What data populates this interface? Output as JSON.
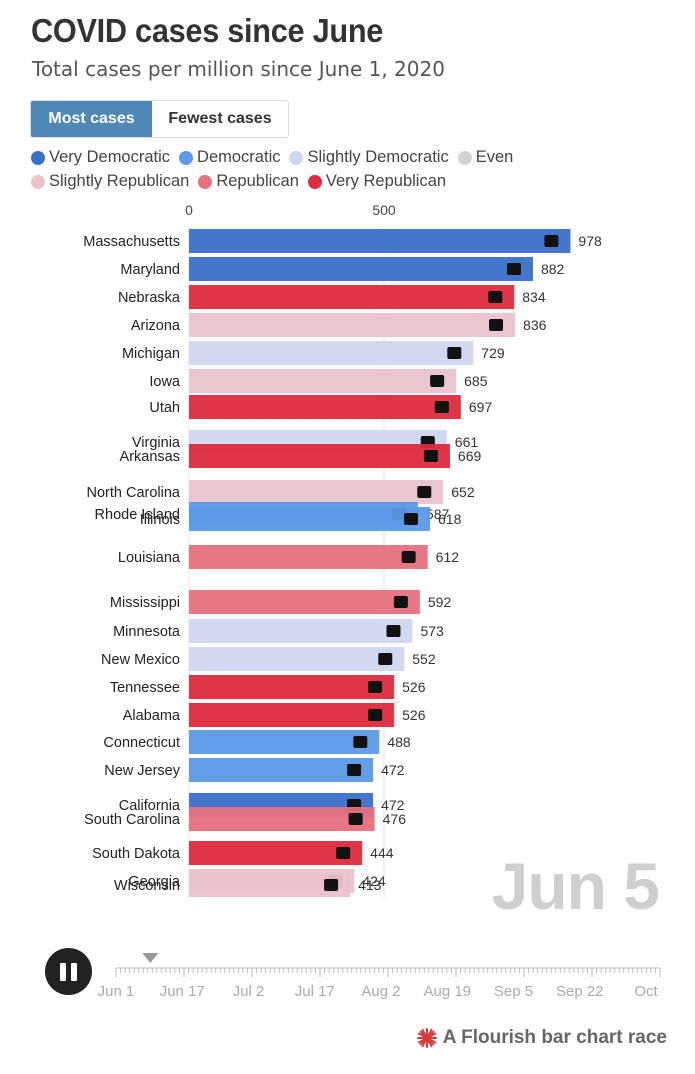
{
  "header": {
    "title": "COVID cases since June",
    "subtitle": "Total cases per million since June 1, 2020"
  },
  "toggle": {
    "most_label": "Most cases",
    "fewest_label": "Fewest cases",
    "active": "most"
  },
  "legend": [
    {
      "label": "Very Democratic",
      "color": "#3a6fc8"
    },
    {
      "label": "Democratic",
      "color": "#5b9ae8"
    },
    {
      "label": "Slightly Democratic",
      "color": "#cfd6ef"
    },
    {
      "label": "Even",
      "color": "#d3d3d3"
    },
    {
      "label": "Slightly Republican",
      "color": "#eac3cb"
    },
    {
      "label": "Republican",
      "color": "#e6707e"
    },
    {
      "label": "Very Republican",
      "color": "#dd2a3c"
    }
  ],
  "chart_data": {
    "type": "bar",
    "orientation": "horizontal",
    "x_ticks": [
      0,
      500
    ],
    "categories": [
      "Massachusetts",
      "Maryland",
      "Nebraska",
      "Arizona",
      "Michigan",
      "Iowa",
      "Utah",
      "Virginia",
      "Arkansas",
      "North Carolina",
      "Rhode Island",
      "Illinois",
      "Louisiana",
      "Mississippi",
      "Minnesota",
      "New Mexico",
      "Tennessee",
      "Alabama",
      "Connecticut",
      "New Jersey",
      "California",
      "South Carolina",
      "South Dakota",
      "Georgia",
      "Wisconsin"
    ],
    "values": [
      978,
      882,
      834,
      836,
      729,
      685,
      697,
      661,
      669,
      652,
      587,
      618,
      612,
      592,
      573,
      552,
      526,
      526,
      488,
      472,
      472,
      476,
      444,
      424,
      413
    ],
    "groups": [
      "Very Democratic",
      "Very Democratic",
      "Very Republican",
      "Slightly Republican",
      "Slightly Democratic",
      "Slightly Republican",
      "Very Republican",
      "Slightly Democratic",
      "Very Republican",
      "Slightly Republican",
      "Democratic",
      "Democratic",
      "Republican",
      "Republican",
      "Slightly Democratic",
      "Slightly Democratic",
      "Very Republican",
      "Very Republican",
      "Democratic",
      "Democratic",
      "Very Democratic",
      "Republican",
      "Very Republican",
      "Slightly Republican",
      "Slightly Republican"
    ],
    "current_date": "Jun 5"
  },
  "timeline": {
    "labels": [
      "Jun 1",
      "Jun 17",
      "Jul 2",
      "Jul 17",
      "Aug 2",
      "Aug 19",
      "Sep 5",
      "Sep 22",
      "Oct"
    ],
    "progress": 0.03
  },
  "credit": "A Flourish bar chart race"
}
